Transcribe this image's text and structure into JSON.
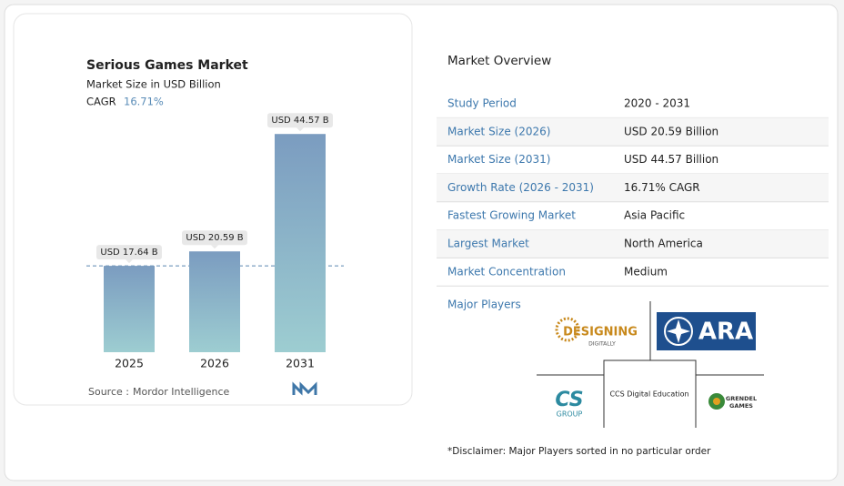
{
  "chart_data": {
    "type": "bar",
    "title": "Serious Games Market",
    "subtitle": "Market Size in USD Billion",
    "cagr_label": "CAGR",
    "cagr_value": "16.71%",
    "categories": [
      "2025",
      "2026",
      "2031"
    ],
    "values": [
      17.64,
      20.59,
      44.57
    ],
    "value_labels": [
      "USD 17.64 B",
      "USD 20.59 B",
      "USD 44.57 B"
    ],
    "ylim": [
      0,
      50
    ],
    "color_top": "#7b9cc0",
    "color_bottom": "#9dcdd1",
    "source_label": "Source :",
    "source": "Mordor Intelligence"
  },
  "overview": {
    "title": "Market Overview",
    "rows": [
      [
        "Study Period",
        "2020 - 2031"
      ],
      [
        "Market Size (2026)",
        "USD 20.59 Billion"
      ],
      [
        "Market Size (2031)",
        "USD 44.57 Billion"
      ],
      [
        "Growth Rate (2026 - 2031)",
        "16.71% CAGR"
      ],
      [
        "Fastest Growing Market",
        "Asia Pacific"
      ],
      [
        "Largest Market",
        "North America"
      ],
      [
        "Market Concentration",
        "Medium"
      ]
    ]
  },
  "players": {
    "title": "Major Players",
    "logos": [
      [
        "DESIGNING",
        "DIGITALLY"
      ],
      [
        "ARA"
      ],
      [
        "CCS Digital Education"
      ],
      [
        "CS",
        "GROUP"
      ],
      [
        "GRENDEL",
        "GAMES"
      ]
    ]
  },
  "disclaimer": "*Disclaimer: Major Players sorted in no particular order"
}
